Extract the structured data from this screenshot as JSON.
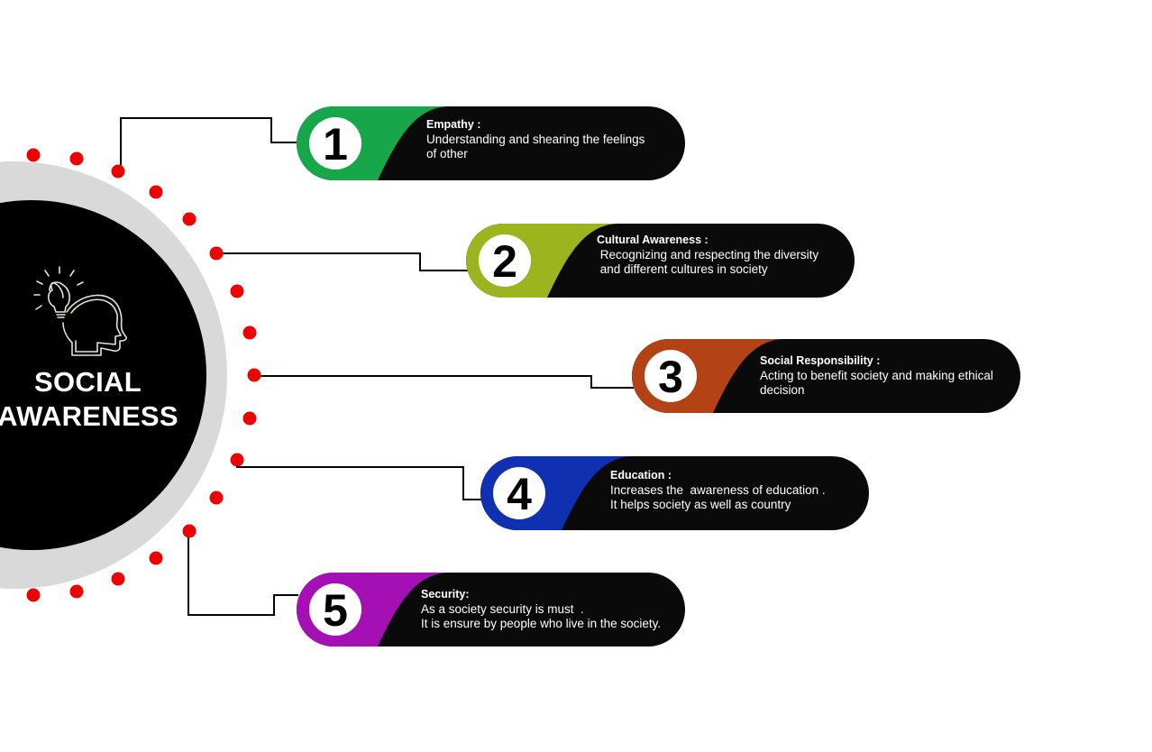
{
  "hub": {
    "icon": "lightbulb-head-icon",
    "title_line1": "SOCIAL",
    "title_line2": "AWARENESS",
    "colors": {
      "core": "#000000",
      "ring": "#d9d9d9",
      "dots": "#ee0000",
      "connector": "#000000"
    }
  },
  "items": [
    {
      "number": "1",
      "heading": "Empathy :",
      "lines": [
        "Understanding and shearing the feelings",
        "of other"
      ],
      "color": "#17a64a"
    },
    {
      "number": "2",
      "heading": "Cultural Awareness :",
      "lines": [
        " Recognizing and respecting the diversity",
        " and different cultures in society"
      ],
      "color": "#9cb41d"
    },
    {
      "number": "3",
      "heading": "Social Responsibility :",
      "lines": [
        "Acting to benefit society and making ethical",
        "decision"
      ],
      "color": "#b34214"
    },
    {
      "number": "4",
      "heading": "Education :",
      "lines": [
        "Increases the  awareness of education .",
        "It helps society as well as country"
      ],
      "color": "#0f30b0"
    },
    {
      "number": "5",
      "heading": "Security:",
      "lines": [
        "As a society security is must  .",
        "It is ensure by people who live in the society."
      ],
      "color": "#a510b4"
    }
  ]
}
